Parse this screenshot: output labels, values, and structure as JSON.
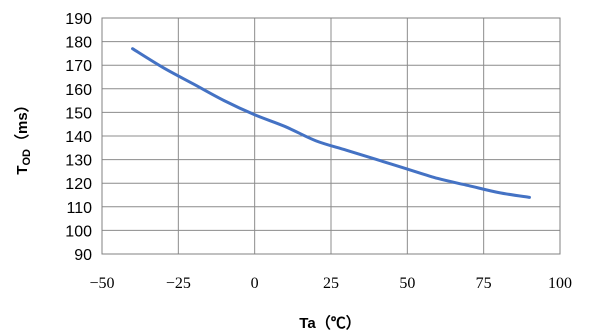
{
  "chart_data": {
    "type": "line",
    "title": "",
    "xlabel": "Ta（℃）",
    "ylabel": {
      "main": "T",
      "sub": "OD",
      "rest": "（ms）"
    },
    "xlim": [
      -50,
      100
    ],
    "ylim": [
      90,
      190
    ],
    "x_ticks": [
      -50,
      -25,
      0,
      25,
      50,
      75,
      100
    ],
    "x_tick_labels": [
      "−50",
      "−25",
      "0",
      "25",
      "50",
      "75",
      "100"
    ],
    "y_ticks": [
      90,
      100,
      110,
      120,
      130,
      140,
      150,
      160,
      170,
      180,
      190
    ],
    "grid": true,
    "legend": "none",
    "series": [
      {
        "color": "#4472C4",
        "x": [
          -40,
          -30,
          -20,
          -10,
          0,
          10,
          20,
          30,
          40,
          50,
          60,
          70,
          80,
          90
        ],
        "y": [
          177,
          169,
          162,
          155,
          149,
          144,
          138,
          134,
          130,
          126,
          122,
          119,
          116,
          114
        ]
      }
    ]
  }
}
